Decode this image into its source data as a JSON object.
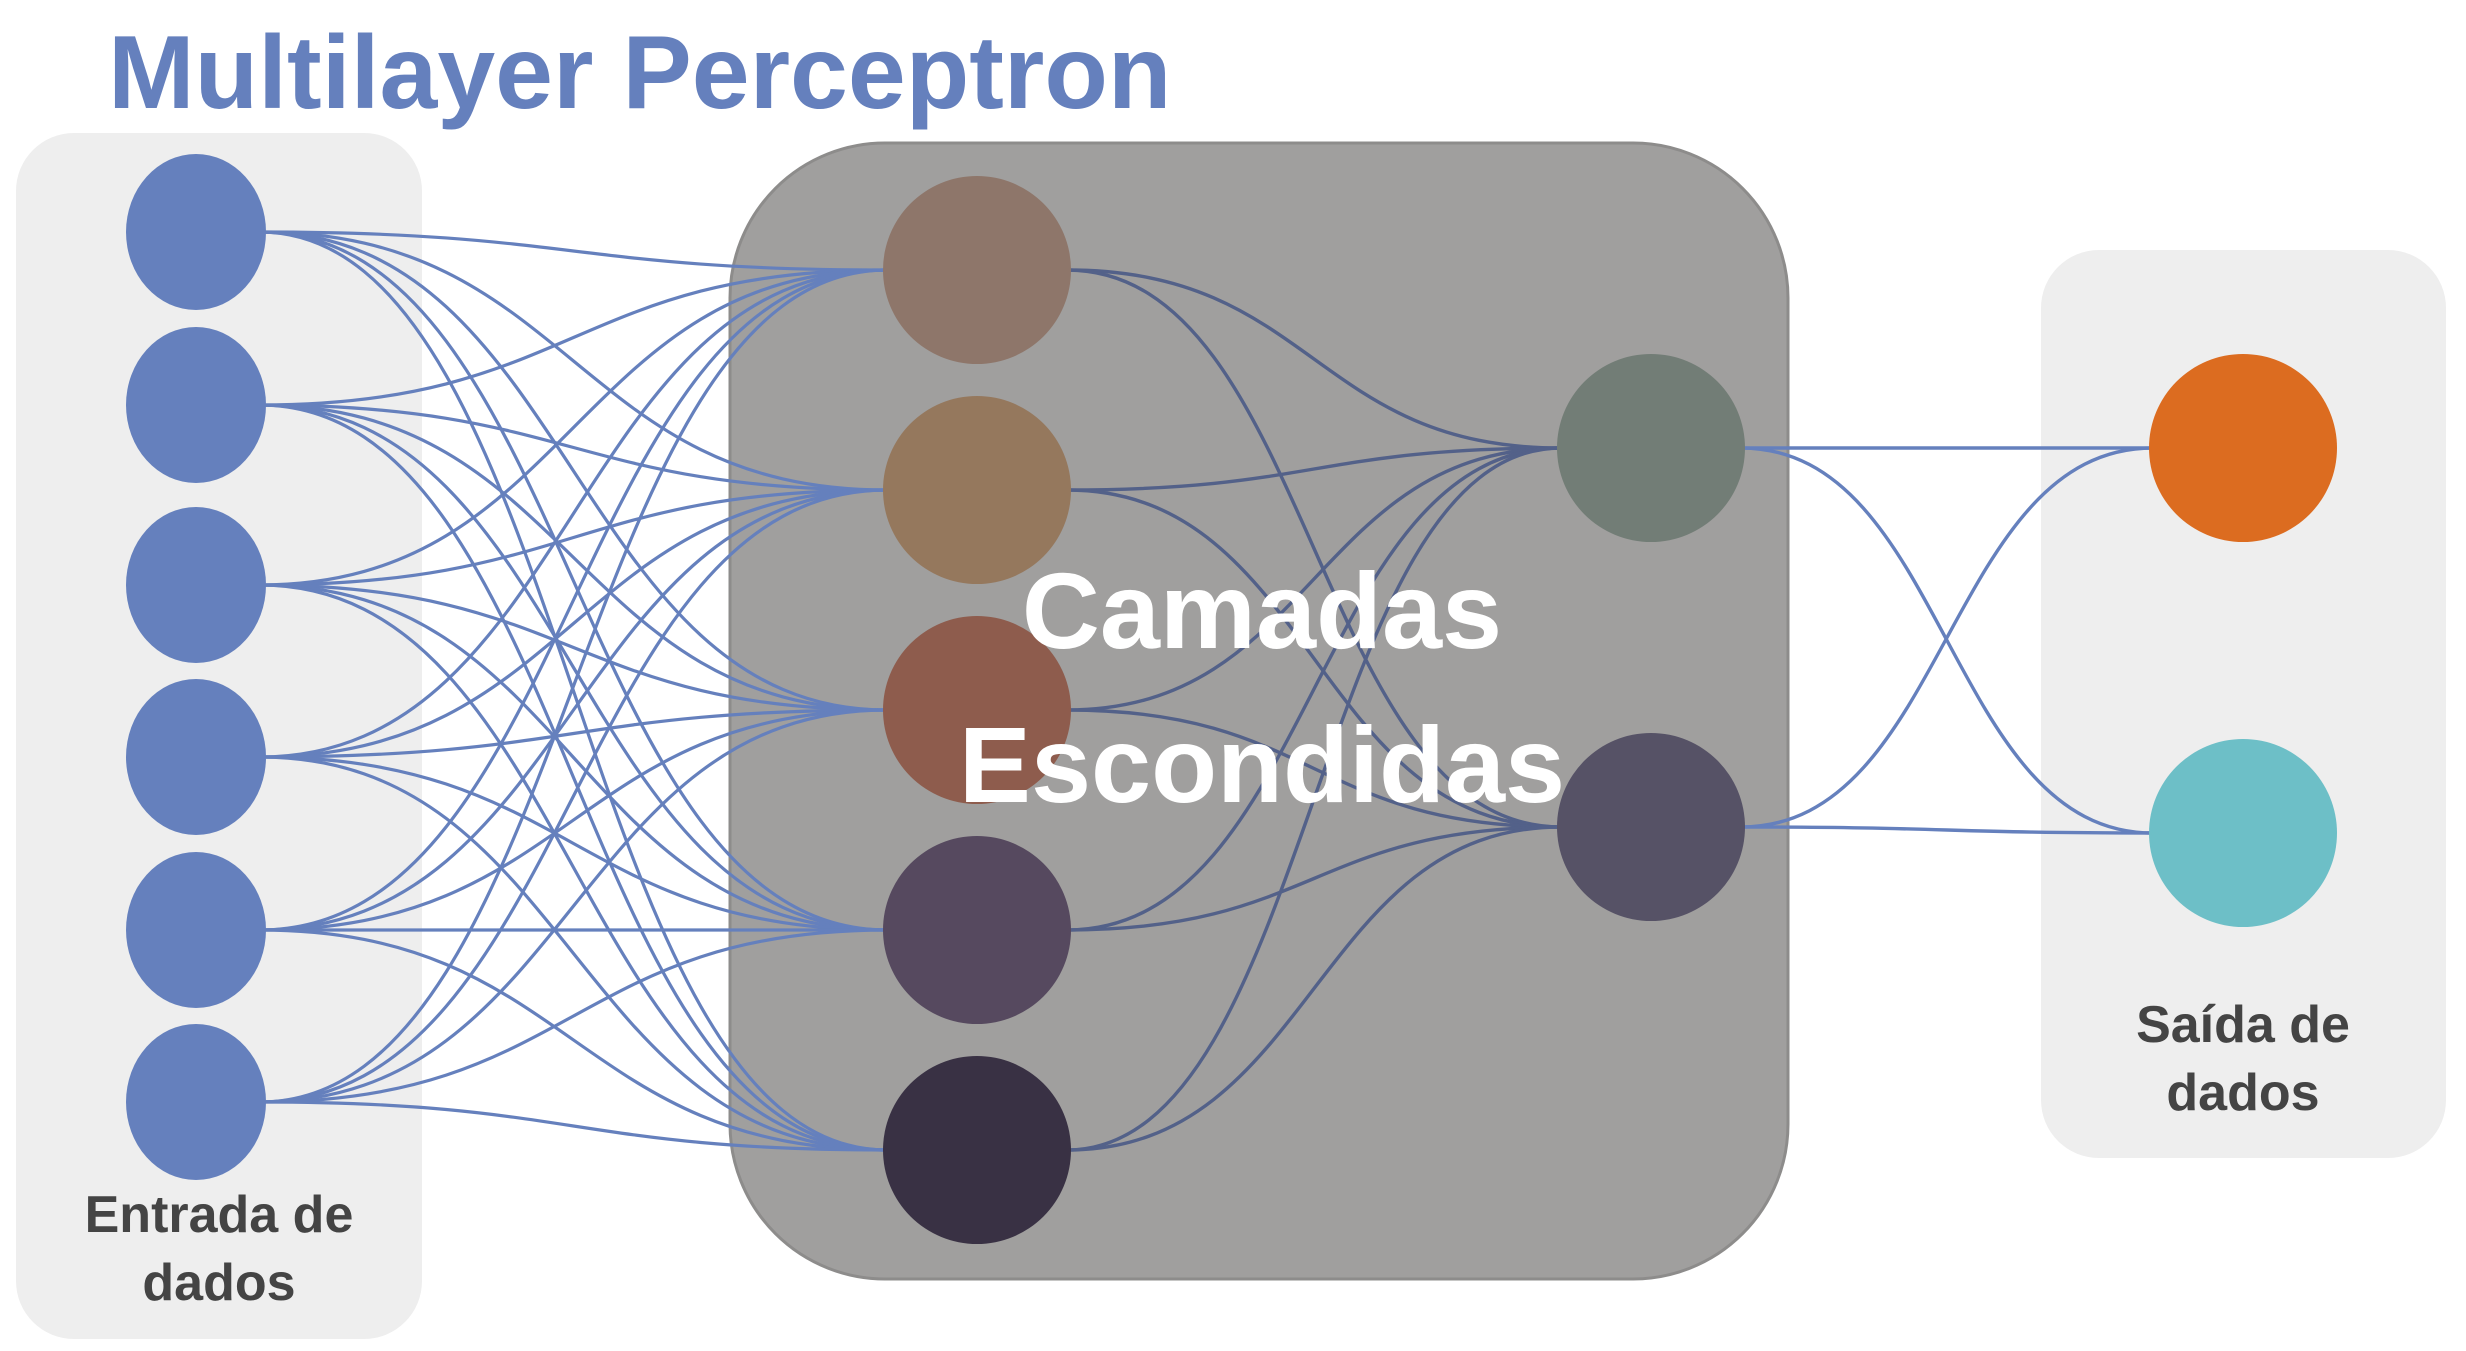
{
  "title": "Multilayer Perceptron",
  "colors": {
    "title": "#6580bd",
    "panel_side": "#eeeeee",
    "panel_hidden": "#a09f9e",
    "panel_hidden_border": "#8d8c8b",
    "edge": "#6580bd",
    "edge_hidden": "#536189",
    "input_node": "#6580bd",
    "label_dark": "#444444",
    "label_light": "#ffffff"
  },
  "input_layer": {
    "label_line1": "Entrada de",
    "label_line2": "dados",
    "node_count": 6
  },
  "hidden_layers": {
    "label_line1": "Camadas",
    "label_line2": "Escondidas",
    "layer1_colors": [
      "#8e766a",
      "#95785d",
      "#8e5c4d",
      "#56495f",
      "#393144"
    ],
    "layer2_colors": [
      "#727d76",
      "#565266"
    ]
  },
  "output_layer": {
    "label_line1": "Saída de",
    "label_line2": "dados",
    "node_colors": [
      "#dc6c20",
      "#6dbfc7"
    ]
  }
}
